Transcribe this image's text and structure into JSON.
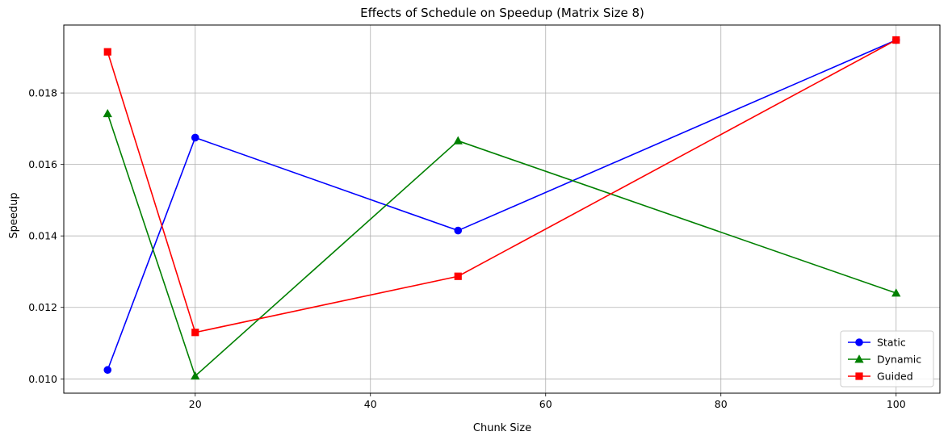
{
  "chart_data": {
    "type": "line",
    "title": "Effects of Schedule on Speedup (Matrix Size 8)",
    "xlabel": "Chunk Size",
    "ylabel": "Speedup",
    "x": [
      10,
      20,
      50,
      100
    ],
    "xlim": [
      5,
      105
    ],
    "ylim": [
      0.0096,
      0.0199
    ],
    "xticks": [
      20,
      40,
      60,
      80,
      100
    ],
    "yticks": [
      0.01,
      0.012,
      0.014,
      0.016,
      0.018
    ],
    "xtick_labels": [
      "20",
      "40",
      "60",
      "80",
      "100"
    ],
    "ytick_labels": [
      "0.010",
      "0.012",
      "0.014",
      "0.016",
      "0.018"
    ],
    "grid": true,
    "legend_position": "bottom-right",
    "series": [
      {
        "name": "Static",
        "color": "#0000ff",
        "marker": "circle",
        "values": [
          0.01025,
          0.01675,
          0.01415,
          0.01948
        ]
      },
      {
        "name": "Dynamic",
        "color": "#008000",
        "marker": "triangle",
        "values": [
          0.01742,
          0.01008,
          0.01666,
          0.0124
        ]
      },
      {
        "name": "Guided",
        "color": "#ff0000",
        "marker": "square",
        "values": [
          0.01915,
          0.0113,
          0.01287,
          0.01948
        ]
      }
    ]
  }
}
